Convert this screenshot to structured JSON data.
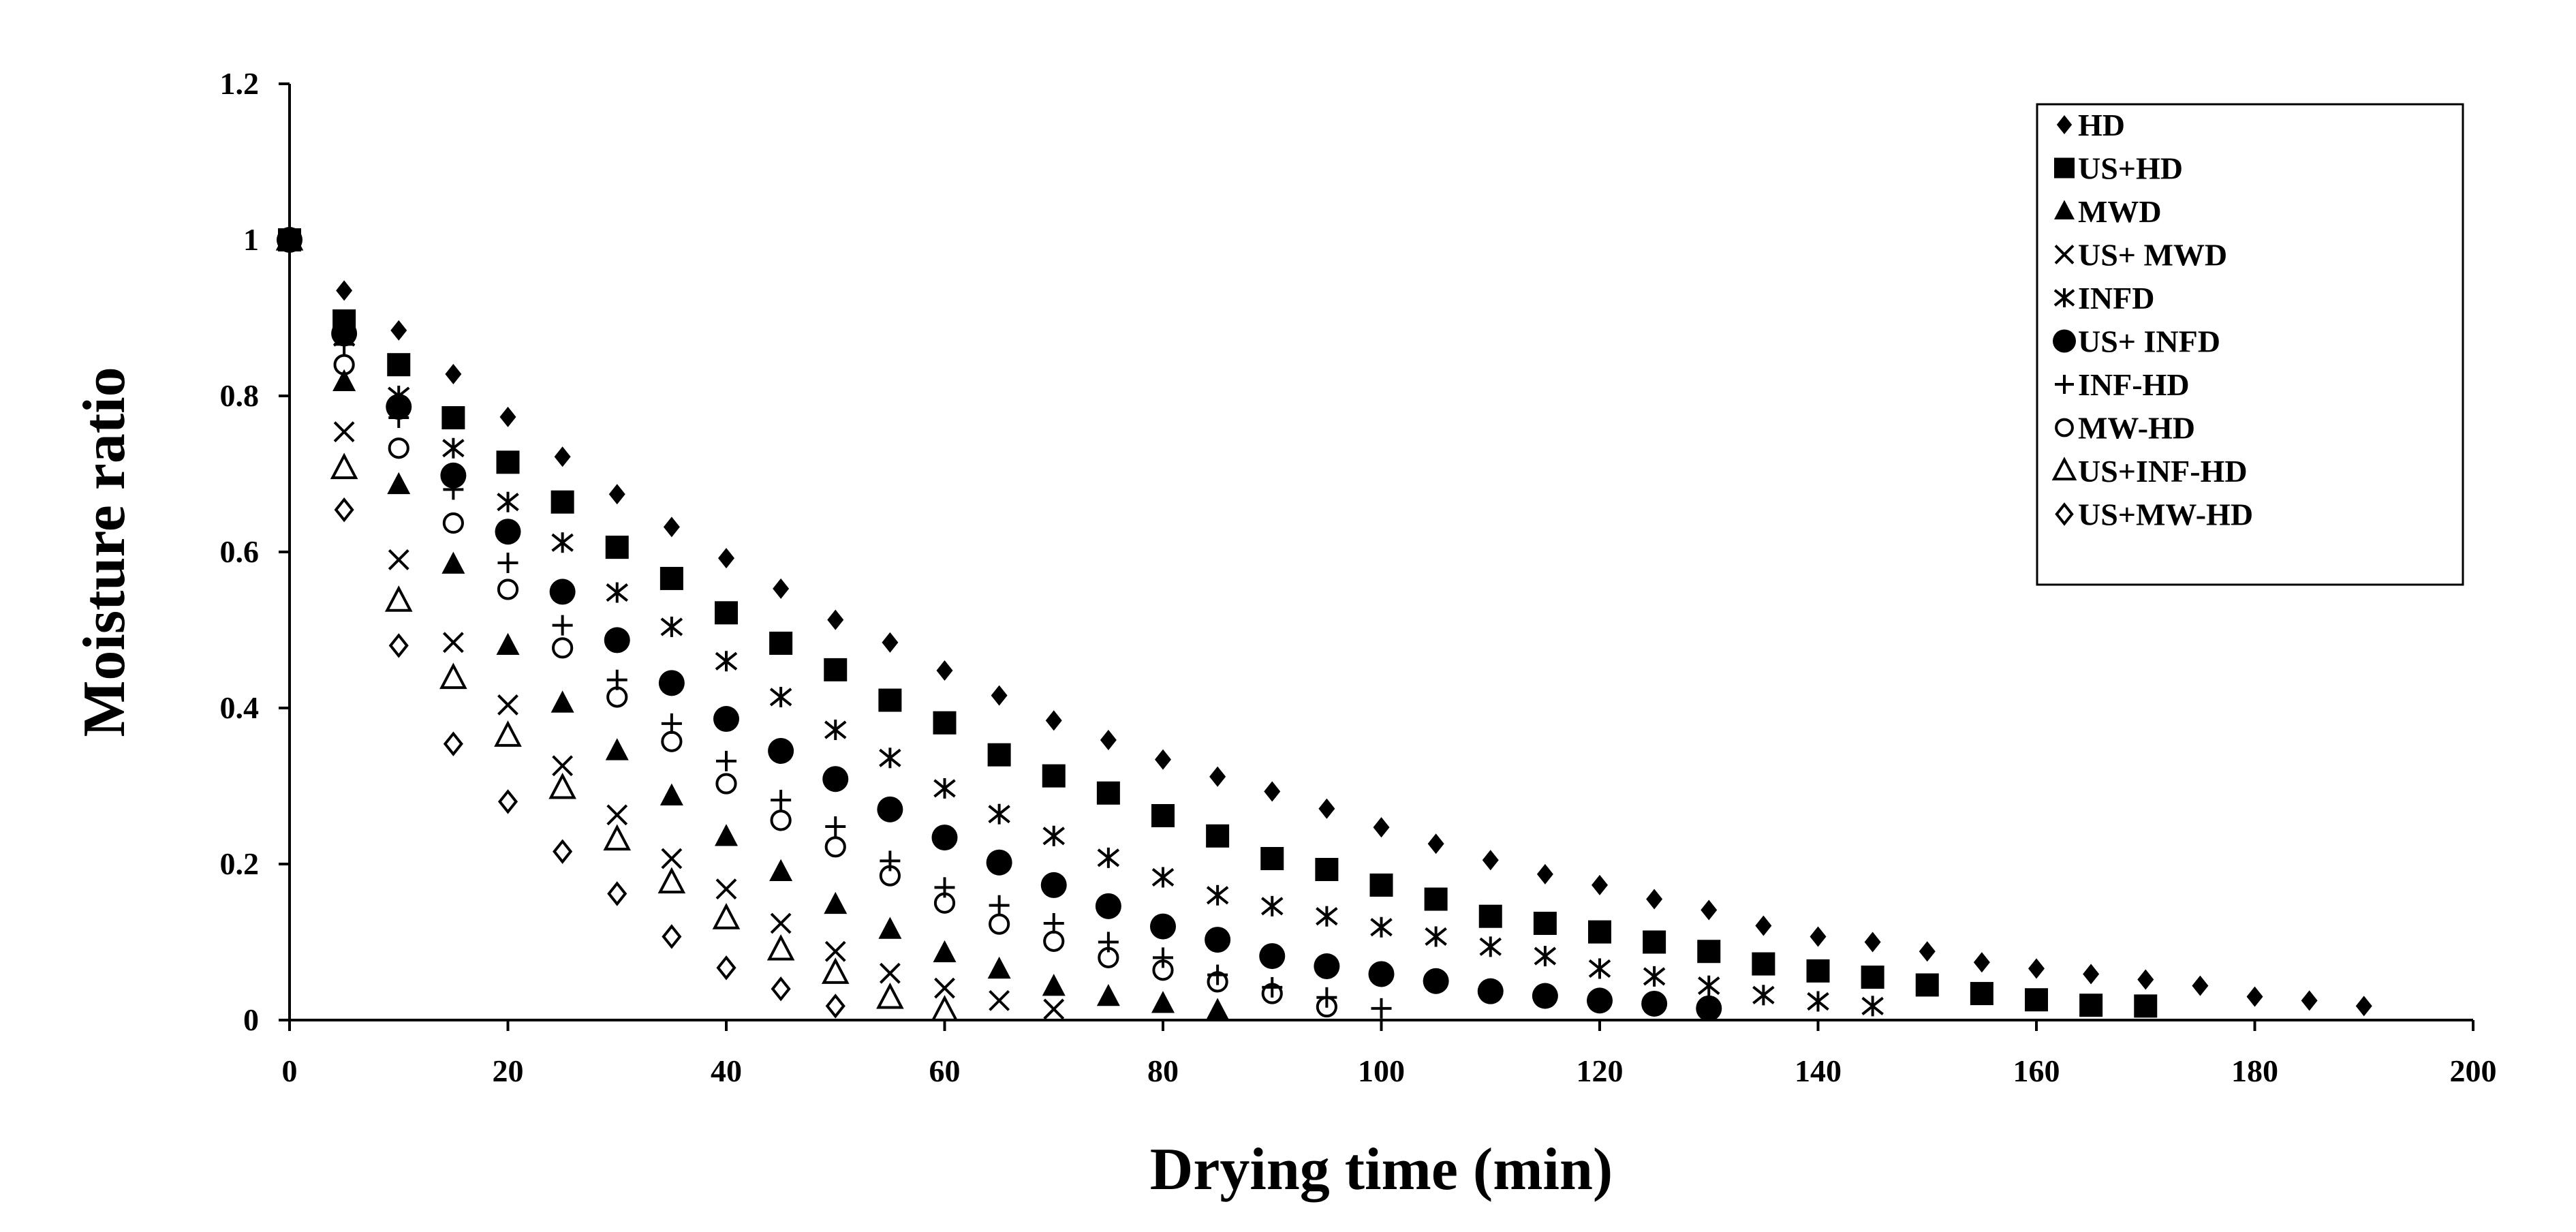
{
  "chart_data": {
    "type": "scatter",
    "title": "",
    "xlabel": "Drying time (min)",
    "ylabel": "Moisture ratio",
    "xlim": [
      0,
      200
    ],
    "ylim": [
      0,
      1.2
    ],
    "xticks": [
      0,
      20,
      40,
      60,
      80,
      100,
      120,
      140,
      160,
      180,
      200
    ],
    "yticks": [
      0,
      0.2,
      0.4,
      0.6,
      0.8,
      1,
      1.2
    ],
    "xtick_labels": [
      "0",
      "20",
      "40",
      "60",
      "80",
      "100",
      "120",
      "140",
      "160",
      "180",
      "200"
    ],
    "ytick_labels": [
      "0",
      "0.2",
      "0.4",
      "0.6",
      "0.8",
      "1",
      "1.2"
    ],
    "grid": false,
    "legend_position": "top-right",
    "series": [
      {
        "name": "HD",
        "marker": "diamond-filled",
        "x": [
          0,
          5,
          10,
          15,
          20,
          25,
          30,
          35,
          40,
          45,
          50,
          55,
          60,
          65,
          70,
          75,
          80,
          85,
          90,
          95,
          100,
          105,
          110,
          115,
          120,
          125,
          130,
          135,
          140,
          145,
          150,
          155,
          160,
          165,
          170,
          175,
          180,
          185,
          190
        ],
        "values": [
          1,
          0.935,
          0.884,
          0.828,
          0.773,
          0.722,
          0.674,
          0.632,
          0.592,
          0.553,
          0.513,
          0.484,
          0.448,
          0.416,
          0.384,
          0.359,
          0.334,
          0.312,
          0.293,
          0.271,
          0.247,
          0.226,
          0.205,
          0.187,
          0.173,
          0.155,
          0.141,
          0.121,
          0.107,
          0.1,
          0.088,
          0.074,
          0.066,
          0.059,
          0.052,
          0.044,
          0.03,
          0.025,
          0.018
        ]
      },
      {
        "name": "US+HD",
        "marker": "square-filled",
        "x": [
          0,
          5,
          10,
          15,
          20,
          25,
          30,
          35,
          40,
          45,
          50,
          55,
          60,
          65,
          70,
          75,
          80,
          85,
          90,
          95,
          100,
          105,
          110,
          115,
          120,
          125,
          130,
          135,
          140,
          145,
          150,
          155,
          160,
          165,
          170
        ],
        "values": [
          1,
          0.896,
          0.84,
          0.772,
          0.715,
          0.664,
          0.606,
          0.566,
          0.522,
          0.483,
          0.449,
          0.41,
          0.381,
          0.34,
          0.313,
          0.291,
          0.262,
          0.236,
          0.207,
          0.193,
          0.173,
          0.155,
          0.133,
          0.124,
          0.113,
          0.1,
          0.088,
          0.072,
          0.063,
          0.055,
          0.045,
          0.034,
          0.026,
          0.019,
          0.018
        ]
      },
      {
        "name": "MWD",
        "marker": "triangle-filled",
        "x": [
          0,
          5,
          10,
          15,
          20,
          25,
          30,
          35,
          40,
          45,
          50,
          55,
          60,
          65,
          70,
          75,
          80,
          85
        ],
        "values": [
          1,
          0.818,
          0.686,
          0.584,
          0.48,
          0.406,
          0.345,
          0.287,
          0.235,
          0.19,
          0.148,
          0.116,
          0.086,
          0.065,
          0.043,
          0.03,
          0.021,
          0.012
        ]
      },
      {
        "name": "US+ MWD",
        "marker": "x",
        "x": [
          0,
          5,
          10,
          15,
          20,
          25,
          30,
          35,
          40,
          45,
          50,
          55,
          60,
          65,
          70
        ],
        "values": [
          1,
          0.754,
          0.59,
          0.484,
          0.404,
          0.326,
          0.263,
          0.207,
          0.168,
          0.124,
          0.088,
          0.06,
          0.041,
          0.025,
          0.014
        ]
      },
      {
        "name": "INFD",
        "marker": "asterisk",
        "x": [
          0,
          5,
          10,
          15,
          20,
          25,
          30,
          35,
          40,
          45,
          50,
          55,
          60,
          65,
          70,
          75,
          80,
          85,
          90,
          95,
          100,
          105,
          110,
          115,
          120,
          125,
          130,
          135,
          140,
          145
        ],
        "values": [
          1,
          0.875,
          0.8,
          0.733,
          0.664,
          0.612,
          0.548,
          0.504,
          0.46,
          0.414,
          0.372,
          0.336,
          0.297,
          0.264,
          0.236,
          0.208,
          0.183,
          0.16,
          0.146,
          0.133,
          0.119,
          0.107,
          0.094,
          0.082,
          0.066,
          0.056,
          0.044,
          0.032,
          0.024,
          0.018
        ]
      },
      {
        "name": "US+ INFD",
        "marker": "circle-filled",
        "x": [
          0,
          5,
          10,
          15,
          20,
          25,
          30,
          35,
          40,
          45,
          50,
          55,
          60,
          65,
          70,
          75,
          80,
          85,
          90,
          95,
          100,
          105,
          110,
          115,
          120,
          125,
          130
        ],
        "values": [
          1,
          0.88,
          0.786,
          0.698,
          0.626,
          0.549,
          0.487,
          0.432,
          0.386,
          0.345,
          0.309,
          0.27,
          0.234,
          0.202,
          0.173,
          0.146,
          0.12,
          0.103,
          0.082,
          0.069,
          0.059,
          0.05,
          0.037,
          0.031,
          0.025,
          0.021,
          0.015
        ]
      },
      {
        "name": "INF-HD",
        "marker": "plus",
        "x": [
          0,
          5,
          10,
          15,
          20,
          25,
          30,
          35,
          40,
          45,
          50,
          55,
          60,
          65,
          70,
          75,
          80,
          85,
          90,
          95,
          100
        ],
        "values": [
          1,
          0.866,
          0.772,
          0.68,
          0.586,
          0.506,
          0.436,
          0.38,
          0.332,
          0.282,
          0.248,
          0.204,
          0.17,
          0.147,
          0.124,
          0.1,
          0.08,
          0.058,
          0.042,
          0.029,
          0.015
        ]
      },
      {
        "name": "MW-HD",
        "marker": "circle-open",
        "x": [
          0,
          5,
          10,
          15,
          20,
          25,
          30,
          35,
          40,
          45,
          50,
          55,
          60,
          65,
          70,
          75,
          80,
          85,
          90,
          95
        ],
        "values": [
          1,
          0.84,
          0.733,
          0.637,
          0.552,
          0.477,
          0.414,
          0.357,
          0.303,
          0.256,
          0.222,
          0.185,
          0.15,
          0.123,
          0.101,
          0.08,
          0.064,
          0.049,
          0.034,
          0.017
        ]
      },
      {
        "name": "US+INF-HD",
        "marker": "triangle-open",
        "x": [
          0,
          5,
          10,
          15,
          20,
          25,
          30,
          35,
          40,
          45,
          50,
          55,
          60
        ],
        "values": [
          1,
          0.707,
          0.537,
          0.438,
          0.364,
          0.297,
          0.231,
          0.176,
          0.13,
          0.09,
          0.06,
          0.028,
          0.012
        ]
      },
      {
        "name": "US+MW-HD",
        "marker": "diamond-open",
        "x": [
          0,
          5,
          10,
          15,
          20,
          25,
          30,
          35,
          40,
          45,
          50
        ],
        "values": [
          1,
          0.654,
          0.48,
          0.354,
          0.28,
          0.216,
          0.162,
          0.107,
          0.067,
          0.04,
          0.018
        ]
      }
    ]
  }
}
